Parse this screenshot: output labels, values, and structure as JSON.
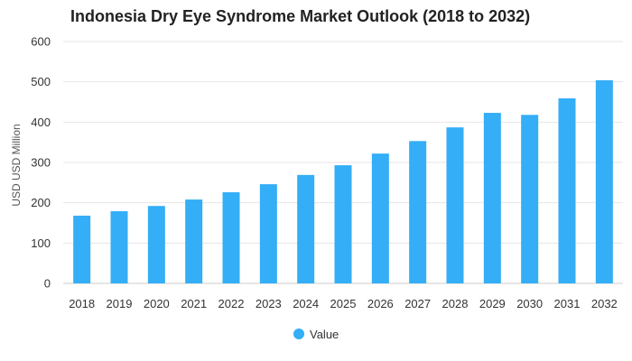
{
  "chart_data": {
    "type": "bar",
    "title": "Indonesia Dry Eye Syndrome Market Outlook (2018 to 2032)",
    "xlabel": "",
    "ylabel": "USD USD Million",
    "categories": [
      "2018",
      "2019",
      "2020",
      "2021",
      "2022",
      "2023",
      "2024",
      "2025",
      "2026",
      "2027",
      "2028",
      "2029",
      "2030",
      "2031",
      "2032"
    ],
    "series": [
      {
        "name": "Value",
        "values": [
          168,
          179,
          192,
          208,
          226,
          246,
          269,
          293,
          322,
          353,
          387,
          423,
          418,
          459,
          504
        ]
      }
    ],
    "ylim": [
      0,
      600
    ],
    "yticks": [
      0,
      100,
      200,
      300,
      400,
      500,
      600
    ],
    "grid": true,
    "legend_position": "bottom-center",
    "colors": {
      "bar": "#33aef7",
      "grid": "#e6e6e6",
      "axis": "#cccccc"
    }
  }
}
